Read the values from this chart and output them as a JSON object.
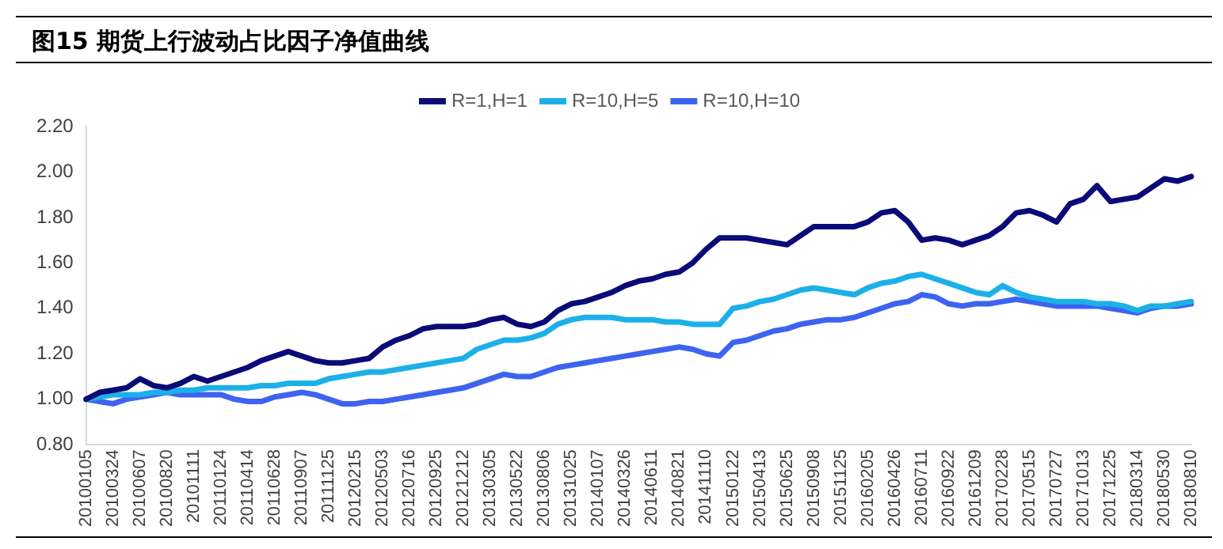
{
  "chart_data": {
    "type": "line",
    "title": "图15 期货上行波动占比因子净值曲线",
    "categories": [
      "20100105",
      null,
      "20100324",
      null,
      "20100607",
      null,
      "20100820",
      null,
      "20101111",
      null,
      "20110124",
      null,
      "20110414",
      null,
      "20110628",
      null,
      "20110907",
      null,
      "20111125",
      null,
      "20120215",
      null,
      "20120503",
      null,
      "20120716",
      null,
      "20120925",
      null,
      "20121212",
      null,
      "20130305",
      null,
      "20130522",
      null,
      "20130806",
      null,
      "20131025",
      null,
      "20140107",
      null,
      "20140326",
      null,
      "20140611",
      null,
      "20140821",
      null,
      "20141110",
      null,
      "20150122",
      null,
      "20150413",
      null,
      "20150625",
      null,
      "20150908",
      null,
      "20151125",
      null,
      "20160205",
      null,
      "20160426",
      null,
      "20160711",
      null,
      "20160922",
      null,
      "20161209",
      null,
      "20170228",
      null,
      "20170515",
      null,
      "20170727",
      null,
      "20171013",
      null,
      "20171225",
      null,
      "20180314",
      null,
      "20180530",
      null,
      "20180810"
    ],
    "series": [
      {
        "name": "R=1,H=1",
        "color": "#0a0a78",
        "values": [
          1.0,
          1.03,
          1.04,
          1.05,
          1.09,
          1.06,
          1.05,
          1.07,
          1.1,
          1.08,
          1.1,
          1.12,
          1.14,
          1.17,
          1.19,
          1.21,
          1.19,
          1.17,
          1.16,
          1.16,
          1.17,
          1.18,
          1.23,
          1.26,
          1.28,
          1.31,
          1.32,
          1.32,
          1.32,
          1.33,
          1.35,
          1.36,
          1.33,
          1.32,
          1.34,
          1.39,
          1.42,
          1.43,
          1.45,
          1.47,
          1.5,
          1.52,
          1.53,
          1.55,
          1.56,
          1.6,
          1.66,
          1.71,
          1.71,
          1.71,
          1.7,
          1.69,
          1.68,
          1.72,
          1.76,
          1.76,
          1.76,
          1.76,
          1.78,
          1.82,
          1.83,
          1.78,
          1.7,
          1.71,
          1.7,
          1.68,
          1.7,
          1.72,
          1.76,
          1.82,
          1.83,
          1.81,
          1.78,
          1.86,
          1.88,
          1.94,
          1.87,
          1.88,
          1.89,
          1.93,
          1.97,
          1.96,
          1.98
        ]
      },
      {
        "name": "R=10,H=5",
        "color": "#1cb0e8",
        "values": [
          1.0,
          1.01,
          1.02,
          1.02,
          1.02,
          1.03,
          1.03,
          1.04,
          1.04,
          1.05,
          1.05,
          1.05,
          1.05,
          1.06,
          1.06,
          1.07,
          1.07,
          1.07,
          1.09,
          1.1,
          1.11,
          1.12,
          1.12,
          1.13,
          1.14,
          1.15,
          1.16,
          1.17,
          1.18,
          1.22,
          1.24,
          1.26,
          1.26,
          1.27,
          1.29,
          1.33,
          1.35,
          1.36,
          1.36,
          1.36,
          1.35,
          1.35,
          1.35,
          1.34,
          1.34,
          1.33,
          1.33,
          1.33,
          1.4,
          1.41,
          1.43,
          1.44,
          1.46,
          1.48,
          1.49,
          1.48,
          1.47,
          1.46,
          1.49,
          1.51,
          1.52,
          1.54,
          1.55,
          1.53,
          1.51,
          1.49,
          1.47,
          1.46,
          1.5,
          1.47,
          1.45,
          1.44,
          1.43,
          1.43,
          1.43,
          1.42,
          1.42,
          1.41,
          1.39,
          1.41,
          1.41,
          1.42,
          1.43
        ]
      },
      {
        "name": "R=10,H=10",
        "color": "#3d63f0",
        "values": [
          1.0,
          0.99,
          0.98,
          1.0,
          1.01,
          1.02,
          1.03,
          1.02,
          1.02,
          1.02,
          1.02,
          1.0,
          0.99,
          0.99,
          1.01,
          1.02,
          1.03,
          1.02,
          1.0,
          0.98,
          0.98,
          0.99,
          0.99,
          1.0,
          1.01,
          1.02,
          1.03,
          1.04,
          1.05,
          1.07,
          1.09,
          1.11,
          1.1,
          1.1,
          1.12,
          1.14,
          1.15,
          1.16,
          1.17,
          1.18,
          1.19,
          1.2,
          1.21,
          1.22,
          1.23,
          1.22,
          1.2,
          1.19,
          1.25,
          1.26,
          1.28,
          1.3,
          1.31,
          1.33,
          1.34,
          1.35,
          1.35,
          1.36,
          1.38,
          1.4,
          1.42,
          1.43,
          1.46,
          1.45,
          1.42,
          1.41,
          1.42,
          1.42,
          1.43,
          1.44,
          1.43,
          1.42,
          1.41,
          1.41,
          1.41,
          1.41,
          1.4,
          1.39,
          1.38,
          1.4,
          1.41,
          1.41,
          1.42
        ]
      }
    ],
    "ylim": [
      0.8,
      2.2
    ],
    "yticks": [
      {
        "value": 0.8,
        "label": "0.80"
      },
      {
        "value": 1.0,
        "label": "1.00"
      },
      {
        "value": 1.2,
        "label": "1.20"
      },
      {
        "value": 1.4,
        "label": "1.40"
      },
      {
        "value": 1.6,
        "label": "1.60"
      },
      {
        "value": 1.8,
        "label": "1.80"
      },
      {
        "value": 2.0,
        "label": "2.00"
      },
      {
        "value": 2.2,
        "label": "2.20"
      }
    ],
    "grid": false,
    "legend": "top",
    "marker": "none",
    "line_style": "solid"
  }
}
